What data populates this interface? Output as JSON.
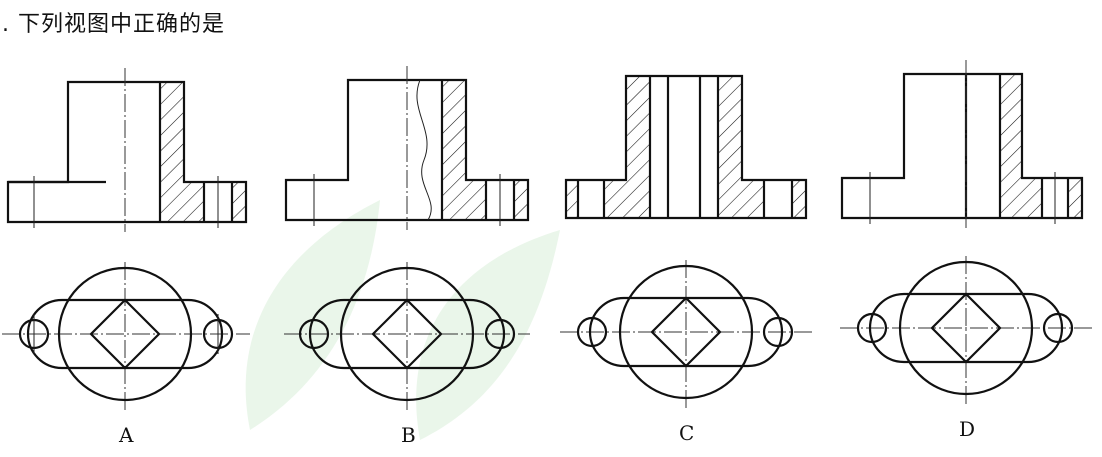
{
  "question": ". 下列视图中正确的是",
  "options": [
    {
      "label": "A"
    },
    {
      "label": "B"
    },
    {
      "label": "C"
    },
    {
      "label": "D"
    }
  ],
  "colors": {
    "ink": "#111111",
    "watermark": "#d8efd9"
  }
}
